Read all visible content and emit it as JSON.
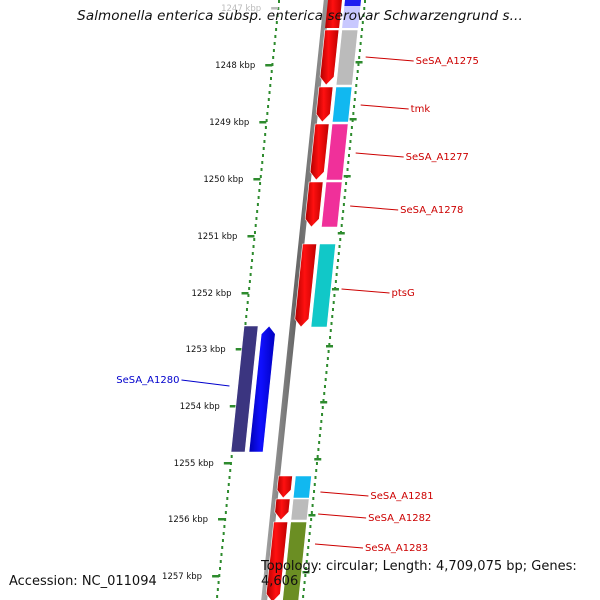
{
  "title": "Salmonella enterica subsp. enterica serovar Schwarzengrund s...",
  "footer": {
    "accession": "Accession: NC_011094",
    "summary": "Topology: circular; Length: 4,709,075 bp; Genes: 4,606"
  },
  "colors": {
    "forward_label": "#0000cc",
    "reverse_label": "#cc0000",
    "tick": "#2e8b2e",
    "backbone": "#808080"
  },
  "ticks": [
    {
      "label": "1247 kbp",
      "faded": true
    },
    {
      "label": "1248 kbp"
    },
    {
      "label": "1249 kbp"
    },
    {
      "label": "1250 kbp"
    },
    {
      "label": "1251 kbp"
    },
    {
      "label": "1252 kbp"
    },
    {
      "label": "1253 kbp"
    },
    {
      "label": "1254 kbp"
    },
    {
      "label": "1255 kbp"
    },
    {
      "label": "1256 kbp"
    },
    {
      "label": "1257 kbp"
    }
  ],
  "genes": [
    {
      "name": "SeSA_A1275",
      "strand": "reverse",
      "cog_color": "#bbbbbb"
    },
    {
      "name": "tmk",
      "strand": "reverse",
      "cog_color": "#11b8f0"
    },
    {
      "name": "SeSA_A1277",
      "strand": "reverse",
      "cog_color": "#f0309a"
    },
    {
      "name": "SeSA_A1278",
      "strand": "reverse",
      "cog_color": "#f0309a"
    },
    {
      "name": "ptsG",
      "strand": "reverse",
      "cog_color": "#11c8c8"
    },
    {
      "name": "SeSA_A1280",
      "strand": "forward",
      "cog_color": "#3b3580"
    },
    {
      "name": "SeSA_A1281",
      "strand": "reverse",
      "cog_color": "#11b8f0"
    },
    {
      "name": "SeSA_A1282",
      "strand": "reverse",
      "cog_color": "#bbbbbb"
    },
    {
      "name": "SeSA_A1283",
      "strand": "reverse",
      "cog_color": "#6b8e23"
    }
  ]
}
